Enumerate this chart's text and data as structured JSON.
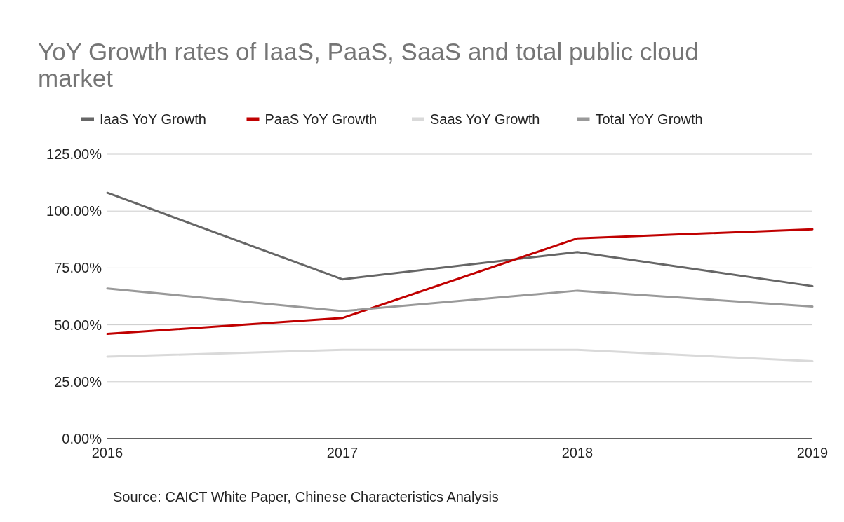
{
  "chart_data": {
    "type": "line",
    "title": "YoY Growth rates of IaaS, PaaS, SaaS and total public cloud market",
    "x": [
      2016,
      2017,
      2018,
      2019
    ],
    "series": [
      {
        "name": "IaaS YoY Growth",
        "color": "#666666",
        "values": [
          108,
          70,
          82,
          67
        ]
      },
      {
        "name": "PaaS YoY Growth",
        "color": "#c00000",
        "values": [
          46,
          53,
          88,
          92
        ]
      },
      {
        "name": "Saas YoY Growth",
        "color": "#d9d9d9",
        "values": [
          36,
          39,
          39,
          34
        ]
      },
      {
        "name": "Total YoY Growth",
        "color": "#999999",
        "values": [
          66,
          56,
          65,
          58
        ]
      }
    ],
    "xlim": [
      2016,
      2019
    ],
    "xticks": [
      2016,
      2017,
      2018,
      2019
    ],
    "ylim": [
      0,
      125
    ],
    "yticks": [
      {
        "value": 0,
        "label": "0.00%"
      },
      {
        "value": 25,
        "label": "25.00%"
      },
      {
        "value": 50,
        "label": "50.00%"
      },
      {
        "value": 75,
        "label": "75.00%"
      },
      {
        "value": 100,
        "label": "100.00%"
      },
      {
        "value": 125,
        "label": "125.00%"
      }
    ],
    "grid": "y",
    "legend": "top",
    "marker": "none",
    "line_style": "solid",
    "annotations": [
      "Source: CAICT White Paper, Chinese Characteristics Analysis"
    ]
  }
}
